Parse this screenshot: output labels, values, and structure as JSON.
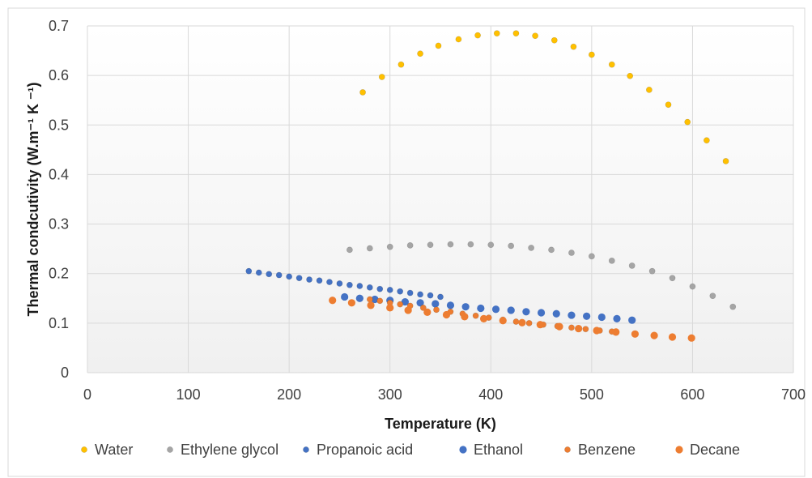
{
  "chart_data": {
    "type": "scatter",
    "title": "",
    "xlabel": "Temperature (K)",
    "ylabel": "Thermal condcutivity (W.m⁻¹ K ⁻¹)",
    "xlim": [
      0,
      700
    ],
    "ylim": [
      0,
      0.7
    ],
    "x_ticks": [
      0,
      100,
      200,
      300,
      400,
      500,
      600,
      700
    ],
    "x_tick_labels": [
      "0",
      "100",
      "200",
      "300",
      "400",
      "500",
      "600",
      "700"
    ],
    "y_ticks": [
      0,
      0.1,
      0.2,
      0.3,
      0.4,
      0.5,
      0.6,
      0.7
    ],
    "y_tick_labels": [
      "0",
      "0.1",
      "0.2",
      "0.3",
      "0.4",
      "0.5",
      "0.6",
      "0.7"
    ],
    "grid": true,
    "legend_position": "bottom",
    "series": [
      {
        "name": "Water",
        "color": "#ffc000",
        "marker": "small",
        "points": [
          [
            273,
            0.566
          ],
          [
            292,
            0.597
          ],
          [
            311,
            0.622
          ],
          [
            330,
            0.644
          ],
          [
            348,
            0.66
          ],
          [
            368,
            0.673
          ],
          [
            387,
            0.681
          ],
          [
            406,
            0.685
          ],
          [
            425,
            0.685
          ],
          [
            444,
            0.68
          ],
          [
            463,
            0.671
          ],
          [
            482,
            0.658
          ],
          [
            500,
            0.642
          ],
          [
            520,
            0.622
          ],
          [
            538,
            0.599
          ],
          [
            557,
            0.571
          ],
          [
            576,
            0.541
          ],
          [
            595,
            0.506
          ],
          [
            614,
            0.469
          ],
          [
            633,
            0.427
          ]
        ]
      },
      {
        "name": "Ethylene glycol",
        "color": "#a5a5a5",
        "marker": "small",
        "points": [
          [
            260,
            0.248
          ],
          [
            280,
            0.251
          ],
          [
            300,
            0.254
          ],
          [
            320,
            0.257
          ],
          [
            340,
            0.258
          ],
          [
            360,
            0.259
          ],
          [
            380,
            0.259
          ],
          [
            400,
            0.258
          ],
          [
            420,
            0.256
          ],
          [
            440,
            0.252
          ],
          [
            460,
            0.248
          ],
          [
            480,
            0.242
          ],
          [
            500,
            0.235
          ],
          [
            520,
            0.226
          ],
          [
            540,
            0.216
          ],
          [
            560,
            0.205
          ],
          [
            580,
            0.191
          ],
          [
            600,
            0.174
          ],
          [
            620,
            0.155
          ],
          [
            640,
            0.133
          ]
        ]
      },
      {
        "name": "Propanoic acid",
        "color": "#4472c4",
        "marker": "small",
        "points": [
          [
            160,
            0.205
          ],
          [
            170,
            0.202
          ],
          [
            180,
            0.199
          ],
          [
            190,
            0.197
          ],
          [
            200,
            0.194
          ],
          [
            210,
            0.191
          ],
          [
            220,
            0.188
          ],
          [
            230,
            0.186
          ],
          [
            240,
            0.183
          ],
          [
            250,
            0.18
          ],
          [
            260,
            0.177
          ],
          [
            270,
            0.175
          ],
          [
            280,
            0.172
          ],
          [
            290,
            0.169
          ],
          [
            300,
            0.167
          ],
          [
            310,
            0.164
          ],
          [
            320,
            0.161
          ],
          [
            330,
            0.158
          ],
          [
            340,
            0.156
          ],
          [
            350,
            0.153
          ]
        ]
      },
      {
        "name": "Ethanol",
        "color": "#4472c4",
        "marker": "large",
        "points": [
          [
            255,
            0.153
          ],
          [
            270,
            0.15
          ],
          [
            285,
            0.148
          ],
          [
            300,
            0.146
          ],
          [
            315,
            0.143
          ],
          [
            330,
            0.141
          ],
          [
            345,
            0.139
          ],
          [
            360,
            0.136
          ],
          [
            375,
            0.133
          ],
          [
            390,
            0.13
          ],
          [
            405,
            0.128
          ],
          [
            420,
            0.126
          ],
          [
            435,
            0.123
          ],
          [
            450,
            0.121
          ],
          [
            465,
            0.119
          ],
          [
            480,
            0.116
          ],
          [
            495,
            0.114
          ],
          [
            510,
            0.112
          ],
          [
            525,
            0.109
          ],
          [
            540,
            0.106
          ]
        ]
      },
      {
        "name": "Benzene",
        "color": "#ed7d31",
        "marker": "small",
        "points": [
          [
            280,
            0.148
          ],
          [
            290,
            0.145
          ],
          [
            300,
            0.141
          ],
          [
            310,
            0.138
          ],
          [
            320,
            0.135
          ],
          [
            333,
            0.131
          ],
          [
            346,
            0.127
          ],
          [
            360,
            0.123
          ],
          [
            372,
            0.119
          ],
          [
            385,
            0.115
          ],
          [
            398,
            0.111
          ],
          [
            412,
            0.107
          ],
          [
            425,
            0.103
          ],
          [
            438,
            0.1
          ],
          [
            452,
            0.097
          ],
          [
            466,
            0.094
          ],
          [
            480,
            0.091
          ],
          [
            494,
            0.088
          ],
          [
            508,
            0.085
          ],
          [
            520,
            0.083
          ]
        ]
      },
      {
        "name": "Decane",
        "color": "#ed7d31",
        "marker": "large",
        "points": [
          [
            243,
            0.146
          ],
          [
            262,
            0.141
          ],
          [
            281,
            0.136
          ],
          [
            300,
            0.131
          ],
          [
            318,
            0.126
          ],
          [
            337,
            0.122
          ],
          [
            356,
            0.117
          ],
          [
            374,
            0.113
          ],
          [
            393,
            0.109
          ],
          [
            412,
            0.105
          ],
          [
            431,
            0.101
          ],
          [
            449,
            0.097
          ],
          [
            468,
            0.093
          ],
          [
            487,
            0.089
          ],
          [
            505,
            0.085
          ],
          [
            524,
            0.082
          ],
          [
            543,
            0.078
          ],
          [
            562,
            0.075
          ],
          [
            580,
            0.072
          ],
          [
            599,
            0.07
          ]
        ]
      }
    ]
  }
}
